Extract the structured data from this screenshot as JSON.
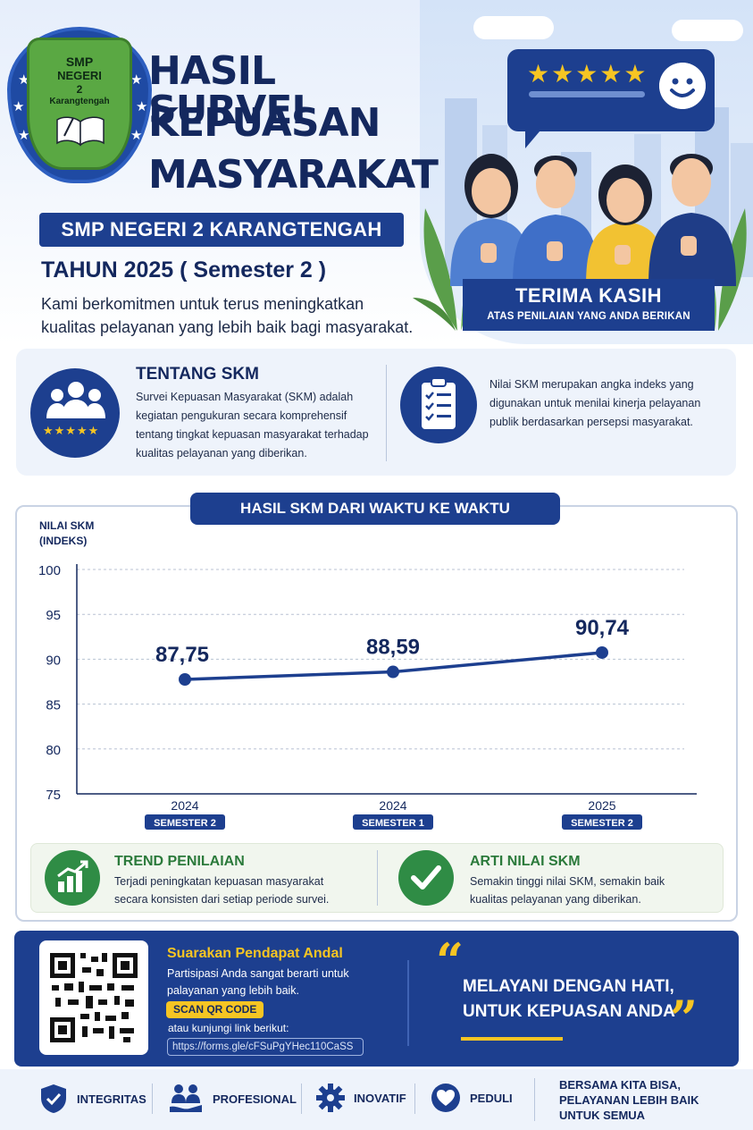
{
  "badge": {
    "line1": "SMP",
    "line2": "NEGERI",
    "line3": "2",
    "line4": "Karangtengah"
  },
  "header": {
    "title_lines": [
      "HASIL SURVEI",
      "KEPUASAN",
      "MASYARAKAT"
    ],
    "school": "SMP NEGERI 2 KARANGTENGAH",
    "year": "TAHUN 2025 ( Semester 2 )",
    "intro": "Kami berkomitmen untuk terus meningkatkan kualitas pelayanan yang lebih baik bagi masyarakat.",
    "rating_stars": "★★★★★",
    "thanks_title": "TERIMA KASIH",
    "thanks_sub": "ATAS PENILAIAN YANG ANDA BERIKAN"
  },
  "about": {
    "title": "TENTANG SKM",
    "text": "Survei Kepuasan Masyarakat (SKM) adalah kegiatan pengukuran secara komprehensif tentang tingkat kepuasan masyarakat terhadap kualitas pelayanan yang diberikan.",
    "stars": "★★★★★",
    "index_text": "Nilai SKM merupakan angka indeks yang digunakan untuk menilai kinerja pelayanan publik berdasarkan persepsi masyarakat."
  },
  "chart_data": {
    "type": "line",
    "title": "HASIL SKM DARI WAKTU KE WAKTU",
    "ylabel": "NILAI SKM (INDEKS)",
    "ylabel_lines": [
      "NILAI SKM",
      "(INDEKS)"
    ],
    "ylim": [
      75,
      100
    ],
    "yticks": [
      100,
      95,
      90,
      85,
      80,
      75
    ],
    "grid": true,
    "categories": [
      "2024",
      "2024",
      "2025"
    ],
    "sublabels": [
      "SEMESTER 2",
      "SEMESTER 1",
      "SEMESTER 2"
    ],
    "values": [
      87.75,
      88.59,
      90.74
    ],
    "value_labels": [
      "87,75",
      "88,59",
      "90,74"
    ],
    "line_color": "#1d3f8f"
  },
  "trend": {
    "title": "TREND PENILAIAN",
    "text": "Terjadi peningkatan kepuasan masyarakat secara konsisten dari setiap periode survei."
  },
  "meaning": {
    "title": "ARTI NILAI SKM",
    "text": "Semakin tinggi nilai SKM, semakin baik kualitas pelayanan yang diberikan."
  },
  "feedback": {
    "title": "Suarakan Pendapat Andal",
    "text": "Partisipasi Anda sangat berarti untuk palayanan yang lebih baik.",
    "scan": "SCAN QR CODE",
    "visit": "atau kunjungi link berikut:",
    "link": "https://forms.gle/cFSuPgYHec110CaSS",
    "quote_open": "“",
    "quote_close": "”",
    "slogan_line1": "MELAYANI DENGAN HATI,",
    "slogan_line2": "UNTUK KEPUASAN ANDA"
  },
  "values": [
    {
      "label": "INTEGRITAS",
      "icon": "shield-check-icon"
    },
    {
      "label": "PROFESIONAL",
      "icon": "helping-hands-icon"
    },
    {
      "label": "INOVATIF",
      "icon": "gear-icon"
    },
    {
      "label": "PEDULI",
      "icon": "heart-icon"
    }
  ],
  "closing": {
    "line1": "BERSAMA KITA BISA,",
    "line2": "PELAYANAN LEBIH BAIK",
    "line3": "UNTUK SEMUA"
  },
  "colors": {
    "navy": "#1d3f8f",
    "dark_navy": "#14285e",
    "gold": "#f6c523",
    "green": "#2f8c45"
  }
}
